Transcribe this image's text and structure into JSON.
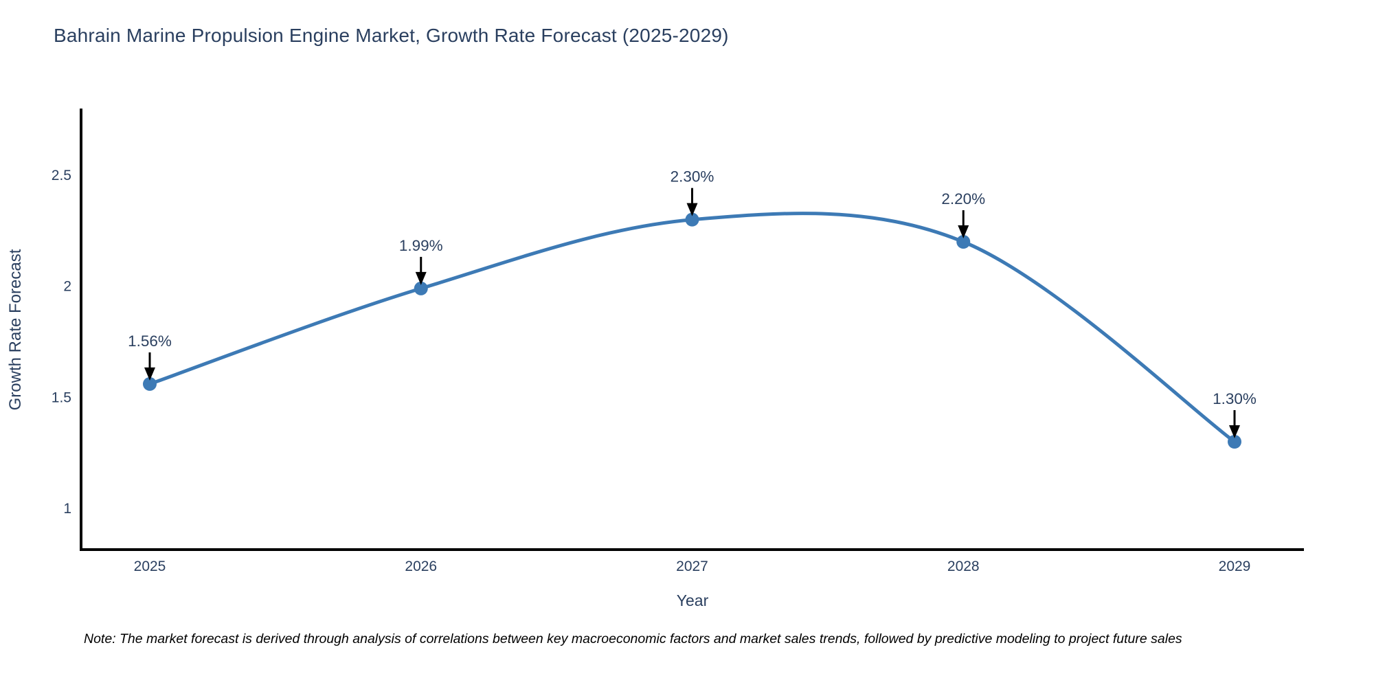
{
  "title": "Bahrain Marine Propulsion Engine Market, Growth Rate Forecast (2025-2029)",
  "note": "Note: The market forecast is derived through analysis of correlations between key macroeconomic factors and market sales trends, followed by predictive modeling to project future sales",
  "colors": {
    "line": "#3d7ab5",
    "marker": "#3d7ab5",
    "axis": "#000000",
    "text": "#2a3f5f",
    "annotation_text": "#2a3f5f",
    "arrow": "#000000",
    "background": "#ffffff"
  },
  "chart_data": {
    "type": "line",
    "title": "Bahrain Marine Propulsion Engine Market, Growth Rate Forecast (2025-2029)",
    "x": [
      2025,
      2026,
      2027,
      2028,
      2029
    ],
    "values": [
      1.56,
      1.99,
      2.3,
      2.2,
      1.3
    ],
    "point_labels": [
      "1.56%",
      "1.99%",
      "2.30%",
      "2.20%",
      "1.30%"
    ],
    "xlabel": "Year",
    "ylabel": "Growth Rate Forecast",
    "x_ticks": [
      "2025",
      "2026",
      "2027",
      "2028",
      "2029"
    ],
    "y_ticks": [
      "2.5",
      "2",
      "1.5",
      "1"
    ],
    "y_tick_values": [
      2.5,
      2.0,
      1.5,
      1.0
    ],
    "ylim": [
      0.81,
      2.8
    ],
    "xlim": [
      2024.74,
      2029.26
    ],
    "grid": false,
    "legend_position": "none",
    "line_shape": "spline",
    "marker_style": "circle",
    "annotation_style": "value-label-with-down-arrow"
  }
}
